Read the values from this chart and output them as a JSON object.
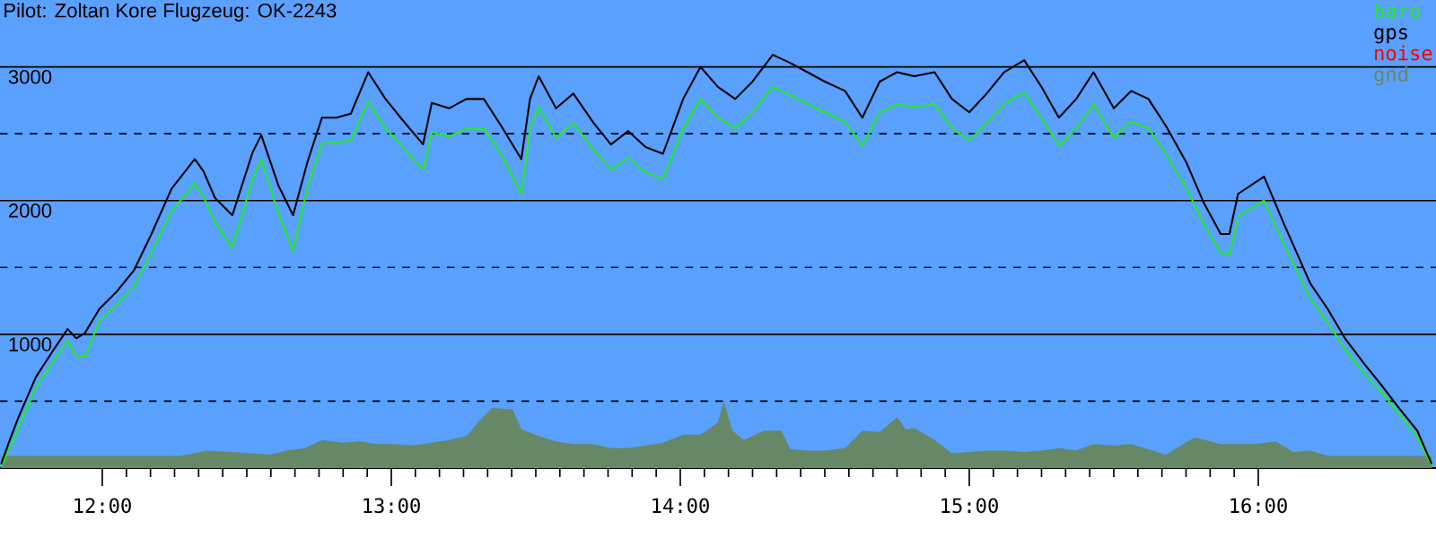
{
  "chart_data": {
    "type": "line",
    "title": "Pilot: Zoltan Kore Flugzeug: OK-2243",
    "xlim": [
      11.646,
      16.615
    ],
    "ylim": [
      0,
      3500
    ],
    "xticks": [
      {
        "value": 12,
        "label": "12:00"
      },
      {
        "value": 13,
        "label": "13:00"
      },
      {
        "value": 14,
        "label": "14:00"
      },
      {
        "value": 15,
        "label": "15:00"
      },
      {
        "value": 16,
        "label": "16:00"
      }
    ],
    "yticks": [
      {
        "value": 500,
        "label": null
      },
      1000,
      {
        "value": 1500,
        "label": null
      },
      2000,
      {
        "value": 2500,
        "label": null
      },
      3000
    ],
    "grid": "y",
    "legend": "top right",
    "series": [
      {
        "name": "baro",
        "color": "#22ee22",
        "x": [
          11.65,
          11.68,
          11.71,
          11.77,
          11.83,
          11.88,
          11.91,
          11.94,
          11.99,
          12.05,
          12.11,
          12.17,
          12.24,
          12.32,
          12.35,
          12.39,
          12.45,
          12.52,
          12.55,
          12.61,
          12.66,
          12.71,
          12.76,
          12.81,
          12.86,
          12.92,
          12.98,
          13.04,
          13.11,
          13.14,
          13.2,
          13.26,
          13.32,
          13.38,
          13.45,
          13.48,
          13.51,
          13.57,
          13.63,
          13.7,
          13.76,
          13.82,
          13.88,
          13.94,
          14.01,
          14.07,
          14.13,
          14.19,
          14.25,
          14.32,
          14.38,
          14.44,
          14.5,
          14.57,
          14.63,
          14.69,
          14.75,
          14.81,
          14.88,
          14.94,
          15.0,
          15.06,
          15.12,
          15.19,
          15.25,
          15.31,
          15.37,
          15.43,
          15.5,
          15.56,
          15.62,
          15.68,
          15.75,
          15.81,
          15.87,
          15.9,
          15.93,
          16.02,
          16.09,
          16.18,
          16.24,
          16.3,
          16.37,
          16.43,
          16.49,
          16.55,
          16.6
        ],
        "values": [
          10,
          150,
          300,
          600,
          800,
          950,
          840,
          830,
          1100,
          1220,
          1360,
          1610,
          1920,
          2130,
          2030,
          1840,
          1650,
          2160,
          2310,
          1900,
          1620,
          2100,
          2430,
          2430,
          2450,
          2740,
          2540,
          2400,
          2230,
          2510,
          2480,
          2540,
          2540,
          2350,
          2050,
          2540,
          2700,
          2470,
          2580,
          2380,
          2230,
          2320,
          2210,
          2160,
          2540,
          2760,
          2620,
          2540,
          2660,
          2850,
          2790,
          2720,
          2660,
          2590,
          2410,
          2660,
          2720,
          2700,
          2720,
          2540,
          2450,
          2580,
          2720,
          2810,
          2620,
          2410,
          2540,
          2720,
          2470,
          2590,
          2540,
          2350,
          2100,
          1830,
          1610,
          1590,
          1880,
          2000,
          1670,
          1270,
          1090,
          890,
          700,
          560,
          400,
          230,
          20
        ]
      },
      {
        "name": "gps",
        "color": "#000000",
        "x": [
          11.65,
          11.68,
          11.71,
          11.77,
          11.83,
          11.88,
          11.91,
          11.94,
          11.99,
          12.05,
          12.11,
          12.17,
          12.24,
          12.32,
          12.35,
          12.39,
          12.45,
          12.52,
          12.55,
          12.61,
          12.66,
          12.71,
          12.76,
          12.81,
          12.86,
          12.92,
          12.98,
          13.04,
          13.11,
          13.14,
          13.2,
          13.26,
          13.32,
          13.38,
          13.45,
          13.48,
          13.51,
          13.57,
          13.63,
          13.7,
          13.76,
          13.82,
          13.88,
          13.94,
          14.01,
          14.07,
          14.13,
          14.19,
          14.25,
          14.32,
          14.38,
          14.44,
          14.5,
          14.57,
          14.63,
          14.69,
          14.75,
          14.81,
          14.88,
          14.94,
          15.0,
          15.06,
          15.12,
          15.19,
          15.25,
          15.31,
          15.37,
          15.43,
          15.5,
          15.56,
          15.62,
          15.68,
          15.75,
          15.81,
          15.87,
          15.9,
          15.93,
          16.02,
          16.09,
          16.18,
          16.24,
          16.3,
          16.37,
          16.43,
          16.49,
          16.55,
          16.6
        ],
        "values": [
          30,
          210,
          380,
          680,
          880,
          1040,
          970,
          1010,
          1190,
          1320,
          1480,
          1750,
          2090,
          2310,
          2220,
          2020,
          1890,
          2360,
          2490,
          2110,
          1890,
          2290,
          2620,
          2620,
          2650,
          2960,
          2760,
          2600,
          2420,
          2730,
          2690,
          2760,
          2760,
          2560,
          2310,
          2760,
          2930,
          2690,
          2800,
          2580,
          2420,
          2520,
          2400,
          2350,
          2760,
          3000,
          2850,
          2760,
          2890,
          3090,
          3030,
          2960,
          2890,
          2820,
          2620,
          2890,
          2960,
          2930,
          2960,
          2760,
          2660,
          2800,
          2960,
          3050,
          2850,
          2620,
          2760,
          2960,
          2690,
          2820,
          2760,
          2560,
          2290,
          1990,
          1750,
          1750,
          2050,
          2180,
          1820,
          1380,
          1190,
          970,
          770,
          610,
          440,
          280,
          30
        ]
      },
      {
        "name": "noise",
        "color": "#ff0000"
      },
      {
        "name": "gnd",
        "color": "#668866",
        "type": "area",
        "x": [
          11.65,
          11.77,
          11.89,
          12.02,
          12.14,
          12.27,
          12.36,
          12.45,
          12.58,
          12.64,
          12.7,
          12.76,
          12.83,
          12.89,
          12.95,
          13.01,
          13.07,
          13.14,
          13.2,
          13.26,
          13.32,
          13.35,
          13.42,
          13.45,
          13.51,
          13.57,
          13.63,
          13.7,
          13.76,
          13.82,
          13.88,
          13.94,
          14.01,
          14.07,
          14.13,
          14.15,
          14.18,
          14.22,
          14.29,
          14.35,
          14.38,
          14.44,
          14.5,
          14.57,
          14.63,
          14.69,
          14.75,
          14.78,
          14.81,
          14.88,
          14.94,
          15.0,
          15.06,
          15.12,
          15.19,
          15.25,
          15.31,
          15.37,
          15.43,
          15.5,
          15.56,
          15.62,
          15.68,
          15.78,
          15.87,
          15.99,
          16.06,
          16.12,
          16.18,
          16.24,
          16.37,
          16.49,
          16.6
        ],
        "values": [
          90,
          90,
          90,
          90,
          90,
          90,
          130,
          120,
          100,
          130,
          150,
          210,
          190,
          200,
          180,
          180,
          170,
          190,
          210,
          240,
          390,
          450,
          440,
          290,
          240,
          200,
          180,
          180,
          150,
          150,
          170,
          190,
          250,
          250,
          340,
          500,
          280,
          210,
          280,
          280,
          140,
          130,
          130,
          150,
          280,
          270,
          380,
          290,
          300,
          210,
          110,
          120,
          130,
          130,
          120,
          130,
          150,
          130,
          180,
          170,
          180,
          140,
          100,
          230,
          180,
          180,
          200,
          120,
          130,
          90,
          90,
          90,
          90
        ]
      }
    ]
  }
}
